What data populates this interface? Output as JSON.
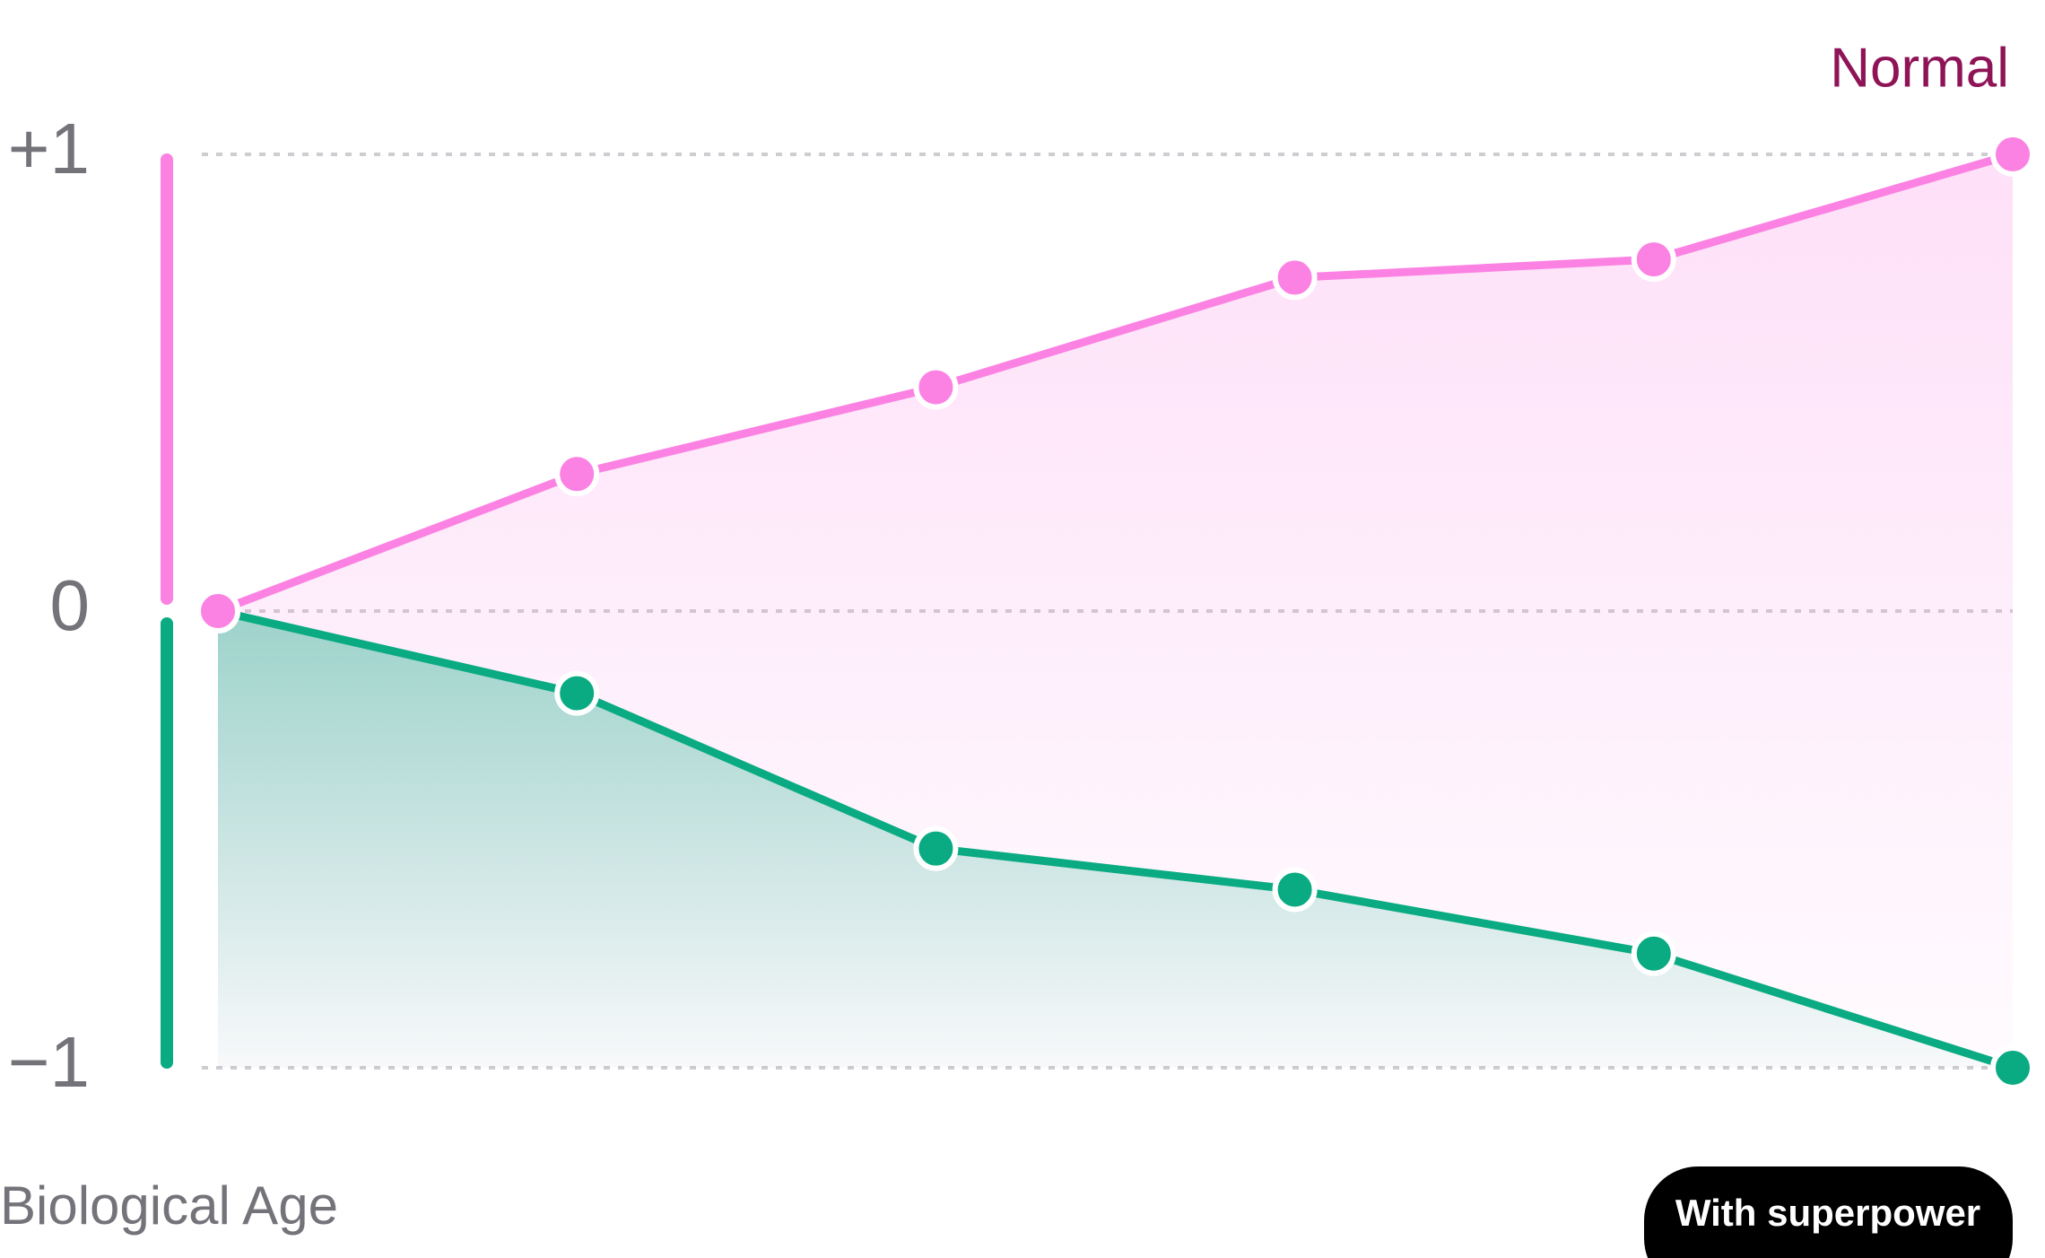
{
  "chart_data": {
    "type": "line",
    "x_label": "Biological Age",
    "categories": [
      null,
      null,
      null,
      null,
      null,
      null
    ],
    "series": [
      {
        "name": "Normal",
        "color": "#fb82e3",
        "values": [
          0,
          0.3,
          0.49,
          0.73,
          0.77,
          1.0
        ]
      },
      {
        "name": "With superpower",
        "color": "#0aab82",
        "values": [
          0,
          -0.18,
          -0.52,
          -0.61,
          -0.75,
          -1.0
        ]
      }
    ],
    "ylim": [
      -1,
      1
    ],
    "yticks": [
      {
        "value": -1,
        "label": "−1"
      },
      0,
      {
        "value": 1,
        "label": "+1"
      }
    ],
    "grid": true
  }
}
